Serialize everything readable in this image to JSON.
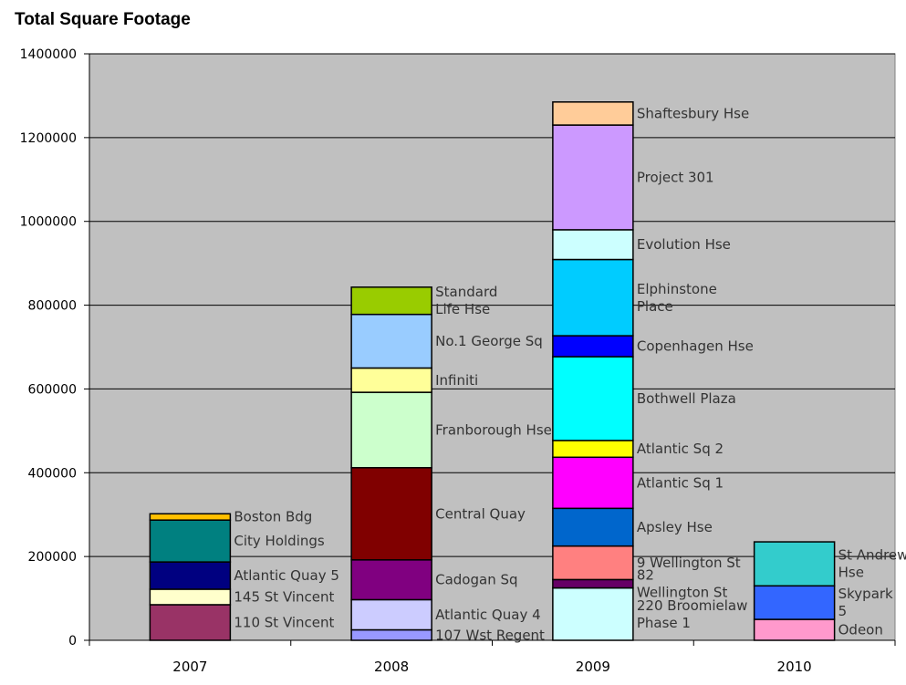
{
  "chart_data": {
    "type": "bar",
    "stacked": true,
    "title": "Total Square Footage",
    "xlabel": "",
    "ylabel": "",
    "ylim": [
      0,
      1400000
    ],
    "yticks": [
      "0",
      "200000",
      "400000",
      "600000",
      "800000",
      "1000000",
      "1200000",
      "1400000"
    ],
    "grid": true,
    "legend": "none",
    "plot_background": "#C0C0C0",
    "categories": [
      "2007",
      "2008",
      "2009",
      "2010"
    ],
    "stacks": [
      {
        "category": "2007",
        "segments": [
          {
            "label": "110 St Vincent",
            "value": 85000,
            "color": "#993366"
          },
          {
            "label": "145 St Vincent",
            "value": 37000,
            "color": "#FFFFCC"
          },
          {
            "label": "Atlantic Quay 5",
            "value": 65000,
            "color": "#000080"
          },
          {
            "label": "City Holdings",
            "value": 100000,
            "color": "#008080"
          },
          {
            "label": "Boston Bdg",
            "value": 15000,
            "color": "#FFC000"
          }
        ]
      },
      {
        "category": "2008",
        "segments": [
          {
            "label": "107 Wst Regent",
            "value": 25000,
            "color": "#9999FF"
          },
          {
            "label": "Atlantic Quay 4",
            "value": 72000,
            "color": "#CCCCFF"
          },
          {
            "label": "Cadogan Sq",
            "value": 95000,
            "color": "#800080"
          },
          {
            "label": "Central Quay",
            "value": 220000,
            "color": "#800000"
          },
          {
            "label": "Franborough Hse",
            "value": 180000,
            "color": "#CCFFCC"
          },
          {
            "label": "Infiniti",
            "value": 58000,
            "color": "#FFFF99"
          },
          {
            "label": "No.1 George Sq",
            "value": 128000,
            "color": "#99CCFF"
          },
          {
            "label": "Standard Life Hse",
            "value": 65000,
            "color": "#99CC00"
          }
        ]
      },
      {
        "category": "2009",
        "segments": [
          {
            "label": "220 Broomielaw Phase 1",
            "value": 125000,
            "color": "#CCFFFF"
          },
          {
            "label": "82 Wellington St",
            "value": 20000,
            "color": "#660066"
          },
          {
            "label": "9 Wellington St",
            "value": 80000,
            "color": "#FF8080"
          },
          {
            "label": "Apsley Hse",
            "value": 90000,
            "color": "#0066CC"
          },
          {
            "label": "Atlantic Sq 1",
            "value": 122000,
            "color": "#FF00FF"
          },
          {
            "label": "Atlantic Sq 2",
            "value": 40000,
            "color": "#FFFF00"
          },
          {
            "label": "Bothwell Plaza",
            "value": 200000,
            "color": "#00FFFF"
          },
          {
            "label": "Copenhagen Hse",
            "value": 50000,
            "color": "#0000FF"
          },
          {
            "label": "Elphinstone Place",
            "value": 182000,
            "color": "#00CCFF"
          },
          {
            "label": "Evolution Hse",
            "value": 71000,
            "color": "#CCFFFF"
          },
          {
            "label": "Project 301",
            "value": 250000,
            "color": "#CC99FF"
          },
          {
            "label": "Shaftesbury Hse",
            "value": 55000,
            "color": "#FFCC99"
          }
        ]
      },
      {
        "category": "2010",
        "segments": [
          {
            "label": "Odeon",
            "value": 50000,
            "color": "#FF99CC"
          },
          {
            "label": "Skypark 5",
            "value": 80000,
            "color": "#3366FF"
          },
          {
            "label": "St Andrew Hse",
            "value": 105000,
            "color": "#33CCCC"
          }
        ]
      }
    ]
  }
}
